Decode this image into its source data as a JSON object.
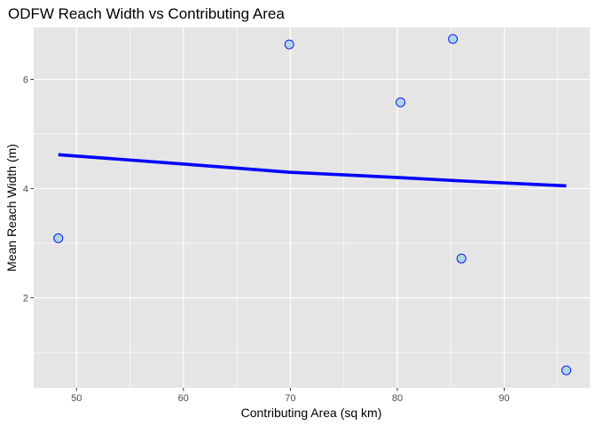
{
  "chart_data": {
    "type": "scatter",
    "title": "ODFW Reach Width vs Contributing Area",
    "xlabel": "Contributing Area (sq km)",
    "ylabel": "Mean Reach Width (m)",
    "xlim": [
      46.0,
      98.0
    ],
    "ylim": [
      0.35,
      6.95
    ],
    "x_ticks": [
      50,
      60,
      70,
      80,
      90
    ],
    "y_ticks": [
      2,
      4,
      6
    ],
    "grid": true,
    "points": [
      {
        "x": 48.3,
        "y": 3.09
      },
      {
        "x": 69.9,
        "y": 6.64
      },
      {
        "x": 80.3,
        "y": 5.58
      },
      {
        "x": 85.2,
        "y": 6.74
      },
      {
        "x": 86.0,
        "y": 2.72
      },
      {
        "x": 95.8,
        "y": 0.67
      }
    ],
    "trend_line": [
      {
        "x": 48.3,
        "y": 4.62
      },
      {
        "x": 60.0,
        "y": 4.45
      },
      {
        "x": 69.9,
        "y": 4.3
      },
      {
        "x": 80.3,
        "y": 4.2
      },
      {
        "x": 86.0,
        "y": 4.14
      },
      {
        "x": 95.8,
        "y": 4.05
      }
    ],
    "colors": {
      "panel": "#e5e5e5",
      "grid": "#ffffff",
      "point_fill": "#add8e6",
      "point_stroke": "#0000ff",
      "line": "#0000ff"
    }
  }
}
